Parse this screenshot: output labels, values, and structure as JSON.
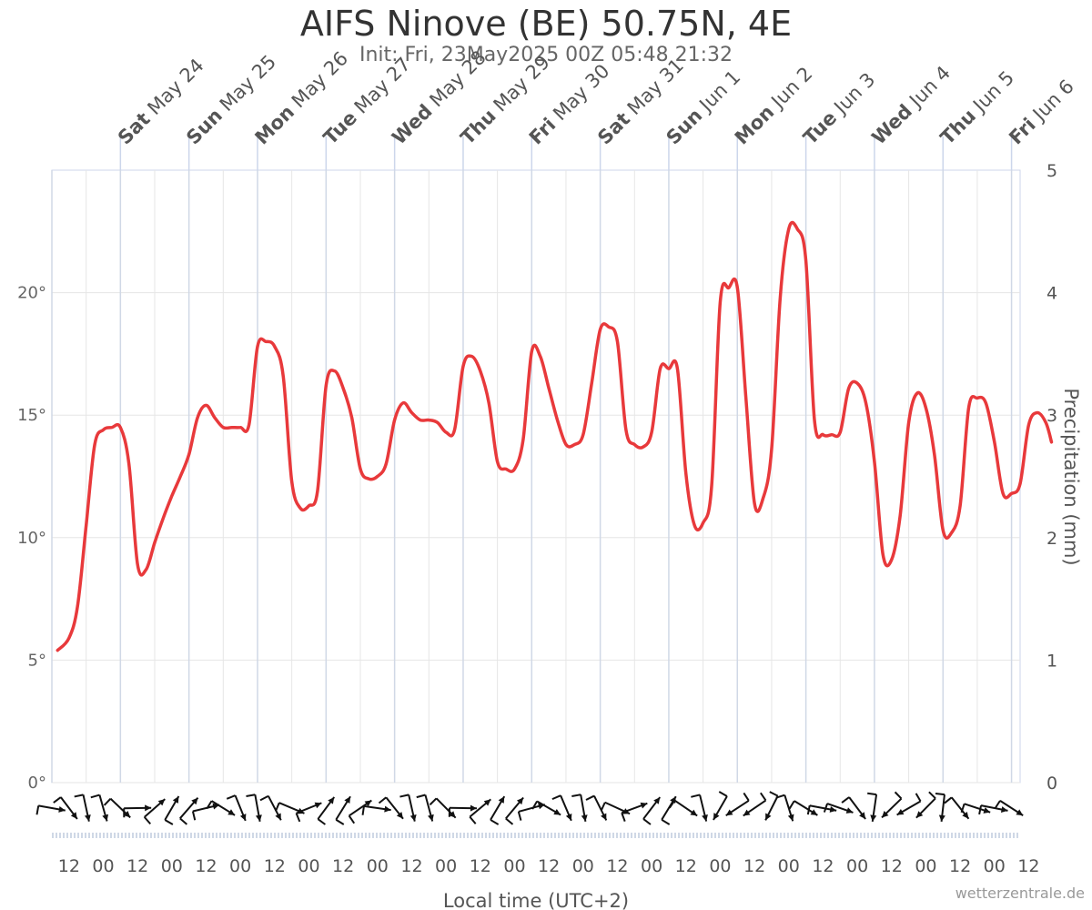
{
  "chart_data": {
    "type": "line",
    "title": "AIFS Ninove (BE) 50.75N, 4E",
    "subtitle": "Init: Fri, 23May2025 00Z 05:48 21:32",
    "xlabel": "Local time (UTC+2)",
    "ylabel_right": "Precipitation (mm)",
    "y_left": {
      "min": 0,
      "max": 25,
      "ticks": [
        0,
        5,
        10,
        15,
        20
      ],
      "unit": "°"
    },
    "y_right": {
      "min": 0,
      "max": 5,
      "ticks": [
        0,
        1,
        2,
        3,
        4,
        5
      ]
    },
    "x_range_hours": [
      0,
      339
    ],
    "day_labels": [
      {
        "day": "Sat",
        "date": "May 24"
      },
      {
        "day": "Sun",
        "date": "May 25"
      },
      {
        "day": "Mon",
        "date": "May 26"
      },
      {
        "day": "Tue",
        "date": "May 27"
      },
      {
        "day": "Wed",
        "date": "May 28"
      },
      {
        "day": "Thu",
        "date": "May 29"
      },
      {
        "day": "Fri",
        "date": "May 30"
      },
      {
        "day": "Sat",
        "date": "May 31"
      },
      {
        "day": "Sun",
        "date": "Jun 1"
      },
      {
        "day": "Mon",
        "date": "Jun 2"
      },
      {
        "day": "Tue",
        "date": "Jun 3"
      },
      {
        "day": "Wed",
        "date": "Jun 4"
      },
      {
        "day": "Thu",
        "date": "Jun 5"
      },
      {
        "day": "Fri",
        "date": "Jun 6"
      }
    ],
    "hour_tick_labels": [
      "12",
      "00",
      "12",
      "00",
      "12",
      "00",
      "12",
      "00",
      "12",
      "00",
      "12",
      "00",
      "12",
      "00",
      "12",
      "00",
      "12",
      "00",
      "12",
      "00",
      "12",
      "00",
      "12",
      "00",
      "12",
      "00",
      "12",
      "00",
      "12"
    ],
    "grid": true,
    "series": [
      {
        "color": "#e8393b",
        "points": [
          [
            2,
            5.4
          ],
          [
            6,
            5.9
          ],
          [
            9,
            7.2
          ],
          [
            12,
            10.5
          ],
          [
            15,
            13.8
          ],
          [
            18,
            14.4
          ],
          [
            21,
            14.5
          ],
          [
            24,
            14.5
          ],
          [
            27,
            13.0
          ],
          [
            30,
            8.9
          ],
          [
            33,
            8.7
          ],
          [
            36,
            9.8
          ],
          [
            39,
            10.8
          ],
          [
            42,
            11.7
          ],
          [
            45,
            12.5
          ],
          [
            48,
            13.4
          ],
          [
            51,
            14.9
          ],
          [
            54,
            15.4
          ],
          [
            57,
            14.9
          ],
          [
            60,
            14.5
          ],
          [
            63,
            14.5
          ],
          [
            66,
            14.5
          ],
          [
            69,
            14.6
          ],
          [
            72,
            17.8
          ],
          [
            75,
            18.0
          ],
          [
            78,
            17.8
          ],
          [
            81,
            16.6
          ],
          [
            84,
            12.3
          ],
          [
            87,
            11.2
          ],
          [
            90,
            11.3
          ],
          [
            93,
            11.9
          ],
          [
            96,
            16.2
          ],
          [
            99,
            16.8
          ],
          [
            102,
            16.1
          ],
          [
            105,
            14.9
          ],
          [
            108,
            12.8
          ],
          [
            111,
            12.4
          ],
          [
            114,
            12.5
          ],
          [
            117,
            13.0
          ],
          [
            120,
            14.8
          ],
          [
            123,
            15.5
          ],
          [
            126,
            15.1
          ],
          [
            129,
            14.8
          ],
          [
            132,
            14.8
          ],
          [
            135,
            14.7
          ],
          [
            138,
            14.3
          ],
          [
            141,
            14.4
          ],
          [
            144,
            17.0
          ],
          [
            147,
            17.4
          ],
          [
            150,
            16.8
          ],
          [
            153,
            15.5
          ],
          [
            156,
            13.1
          ],
          [
            159,
            12.8
          ],
          [
            162,
            12.8
          ],
          [
            165,
            14.0
          ],
          [
            168,
            17.6
          ],
          [
            171,
            17.4
          ],
          [
            174,
            16.1
          ],
          [
            177,
            14.8
          ],
          [
            180,
            13.8
          ],
          [
            183,
            13.8
          ],
          [
            186,
            14.2
          ],
          [
            189,
            16.3
          ],
          [
            192,
            18.5
          ],
          [
            195,
            18.6
          ],
          [
            198,
            18.0
          ],
          [
            201,
            14.4
          ],
          [
            204,
            13.8
          ],
          [
            207,
            13.7
          ],
          [
            210,
            14.3
          ],
          [
            213,
            16.9
          ],
          [
            216,
            16.9
          ],
          [
            219,
            16.9
          ],
          [
            222,
            12.6
          ],
          [
            225,
            10.5
          ],
          [
            228,
            10.6
          ],
          [
            231,
            12.1
          ],
          [
            234,
            19.6
          ],
          [
            237,
            20.2
          ],
          [
            240,
            20.2
          ],
          [
            243,
            15.7
          ],
          [
            246,
            11.4
          ],
          [
            249,
            11.6
          ],
          [
            252,
            13.6
          ],
          [
            255,
            19.8
          ],
          [
            258,
            22.6
          ],
          [
            261,
            22.6
          ],
          [
            264,
            21.3
          ],
          [
            267,
            14.8
          ],
          [
            270,
            14.2
          ],
          [
            273,
            14.2
          ],
          [
            276,
            14.3
          ],
          [
            279,
            16.1
          ],
          [
            282,
            16.3
          ],
          [
            285,
            15.5
          ],
          [
            288,
            13.1
          ],
          [
            291,
            9.3
          ],
          [
            294,
            9.1
          ],
          [
            297,
            10.9
          ],
          [
            300,
            14.7
          ],
          [
            303,
            15.9
          ],
          [
            306,
            15.3
          ],
          [
            309,
            13.4
          ],
          [
            312,
            10.3
          ],
          [
            315,
            10.2
          ],
          [
            318,
            11.3
          ],
          [
            321,
            15.3
          ],
          [
            324,
            15.7
          ],
          [
            327,
            15.5
          ],
          [
            330,
            13.9
          ],
          [
            333,
            11.8
          ],
          [
            336,
            11.8
          ],
          [
            339,
            12.2
          ],
          [
            342,
            14.6
          ],
          [
            345,
            15.1
          ],
          [
            348,
            14.7
          ],
          [
            350,
            13.9
          ]
        ]
      }
    ]
  },
  "credit": "wetterzentrale.de"
}
